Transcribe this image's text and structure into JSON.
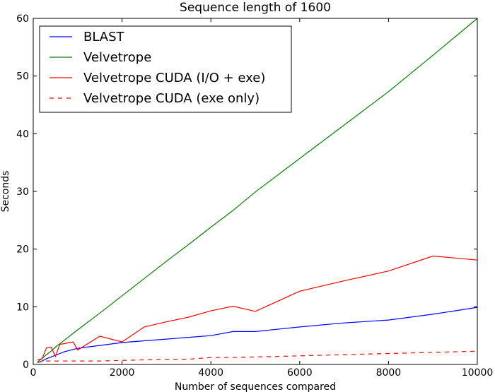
{
  "chart_data": {
    "type": "line",
    "title": "Sequence length of 1600",
    "xlabel": "Number of sequences compared",
    "ylabel": "Seconds",
    "xlim": [
      0,
      10000
    ],
    "ylim": [
      0,
      60
    ],
    "xticks": [
      0,
      2000,
      4000,
      6000,
      8000,
      10000
    ],
    "yticks": [
      0,
      10,
      20,
      30,
      40,
      50,
      60
    ],
    "grid": false,
    "legend_position": "top-left",
    "series": [
      {
        "name": "BLAST",
        "color": "#0000ff",
        "dash": "solid",
        "x": [
          100,
          200,
          300,
          400,
          500,
          600,
          700,
          800,
          900,
          1000,
          1500,
          2000,
          2500,
          3000,
          3500,
          4000,
          4500,
          5000,
          6000,
          7000,
          8000,
          9000,
          10000
        ],
        "y": [
          0.3,
          0.6,
          1.0,
          1.3,
          1.6,
          1.9,
          2.2,
          2.4,
          2.6,
          2.8,
          3.3,
          3.8,
          4.1,
          4.4,
          4.7,
          5.0,
          5.7,
          5.7,
          6.5,
          7.2,
          7.7,
          8.7,
          9.9
        ]
      },
      {
        "name": "Velvetrope",
        "color": "#008000",
        "dash": "solid",
        "x": [
          100,
          200,
          300,
          400,
          500,
          600,
          700,
          800,
          900,
          1000,
          1500,
          2000,
          2500,
          3000,
          3500,
          4000,
          4500,
          5000,
          6000,
          7000,
          8000,
          9000,
          10000
        ],
        "y": [
          0.5,
          1.0,
          1.7,
          2.3,
          3.0,
          3.6,
          4.2,
          4.8,
          5.4,
          6.0,
          8.9,
          11.9,
          14.9,
          17.9,
          20.8,
          23.8,
          26.7,
          29.9,
          35.7,
          41.5,
          47.3,
          53.6,
          60.0
        ]
      },
      {
        "name": "Velvetrope CUDA (I/O + exe)",
        "color": "#ff0000",
        "dash": "solid",
        "x": [
          100,
          200,
          300,
          400,
          500,
          600,
          700,
          800,
          900,
          1000,
          1500,
          2000,
          2500,
          3000,
          3500,
          4000,
          4500,
          5000,
          6000,
          7000,
          8000,
          9000,
          10000
        ],
        "y": [
          0.8,
          1.0,
          2.9,
          3.0,
          1.4,
          3.5,
          3.6,
          3.8,
          3.9,
          2.5,
          4.9,
          3.9,
          6.5,
          7.4,
          8.2,
          9.3,
          10.1,
          9.2,
          12.7,
          14.5,
          16.2,
          18.8,
          18.1
        ]
      },
      {
        "name": "Velvetrope CUDA (exe only)",
        "color": "#ff0000",
        "dash": "dashed",
        "x": [
          100,
          200,
          300,
          400,
          500,
          600,
          700,
          800,
          900,
          1000,
          1500,
          2000,
          2500,
          3000,
          3500,
          4000,
          4500,
          5000,
          6000,
          7000,
          8000,
          9000,
          10000
        ],
        "y": [
          0.4,
          0.5,
          0.6,
          0.6,
          0.6,
          0.6,
          0.6,
          0.6,
          0.6,
          0.6,
          0.6,
          0.7,
          0.8,
          0.9,
          0.9,
          1.2,
          1.2,
          1.3,
          1.5,
          1.7,
          1.9,
          2.1,
          2.3
        ]
      }
    ]
  }
}
